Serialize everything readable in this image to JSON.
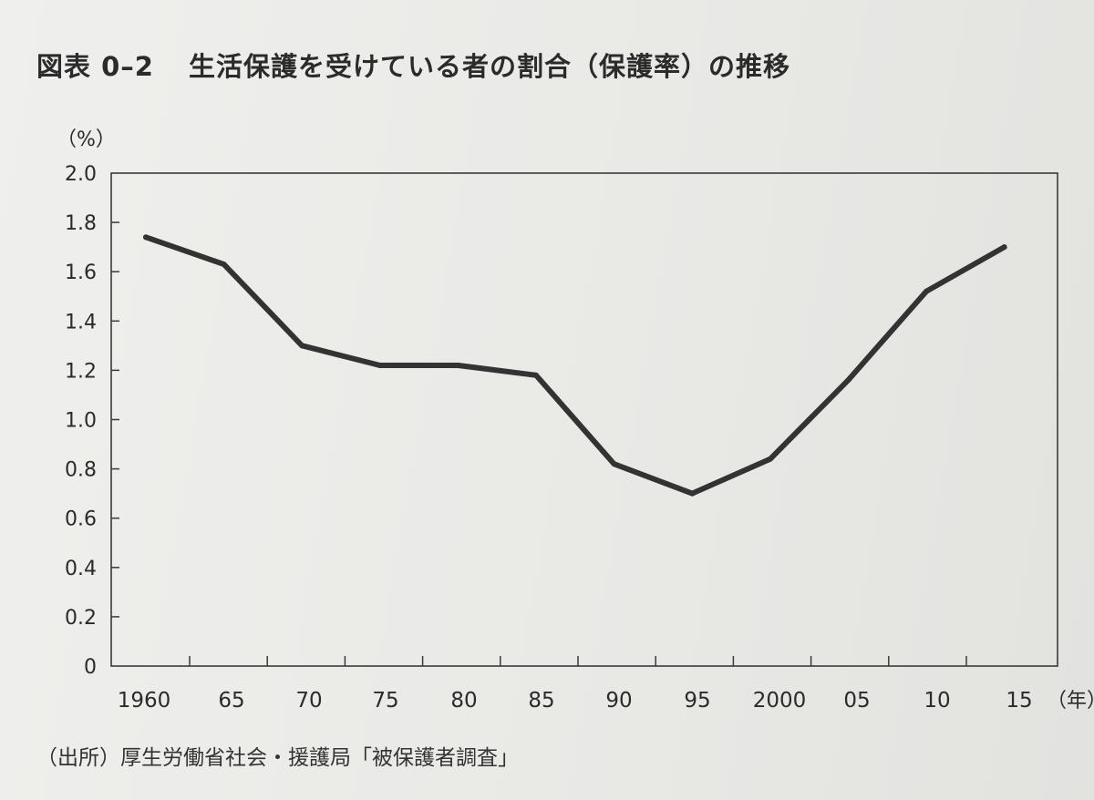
{
  "figure": {
    "number": "図表 0–2",
    "title": "生活保護を受けている者の割合（保護率）の推移",
    "source": "（出所）厚生労働省社会・援護局「被保護者調査」"
  },
  "chart_data": {
    "type": "line",
    "title": "生活保護を受けている者の割合（保護率）の推移",
    "y_unit": "（%）",
    "x_unit": "（年）",
    "ylim": [
      0,
      2.0
    ],
    "y_ticks": [
      "0",
      "0.2",
      "0.4",
      "0.6",
      "0.8",
      "1.0",
      "1.2",
      "1.4",
      "1.6",
      "1.8",
      "2.0"
    ],
    "x_ticks": [
      "1960",
      "65",
      "70",
      "75",
      "80",
      "85",
      "90",
      "95",
      "2000",
      "05",
      "10",
      "15"
    ],
    "grid": false,
    "x": [
      1960,
      1965,
      1970,
      1975,
      1980,
      1985,
      1990,
      1995,
      2000,
      2005,
      2010,
      2015
    ],
    "series": [
      {
        "values": [
          1.74,
          1.63,
          1.3,
          1.22,
          1.22,
          1.18,
          0.82,
          0.7,
          0.84,
          1.16,
          1.52,
          1.7
        ]
      }
    ],
    "line_color": "#333333"
  }
}
